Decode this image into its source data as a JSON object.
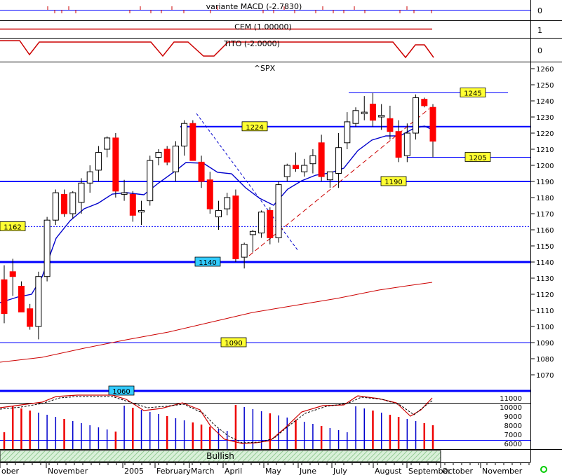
{
  "panels": {
    "macd": {
      "label": "variante MACD (-2.7830)",
      "ticks": [
        "0"
      ]
    },
    "cem": {
      "label": "CEM (1.00000)",
      "ticks": [
        "1",
        "0"
      ]
    },
    "tito": {
      "label": "TITO (-2.0000)",
      "ticks": [
        "0"
      ]
    },
    "volume": {
      "ticks": [
        "11000",
        "10000",
        "9000",
        "8000",
        "7000",
        "6000"
      ]
    }
  },
  "chart_data": {
    "type": "candlestick",
    "title": "^SPX",
    "ylim": [
      1060,
      1260
    ],
    "yticks": [
      1070,
      1080,
      1090,
      1100,
      1110,
      1120,
      1130,
      1140,
      1150,
      1160,
      1170,
      1180,
      1190,
      1200,
      1210,
      1220,
      1230,
      1240,
      1250,
      1260
    ],
    "months": [
      "ober",
      "November",
      "2005",
      "February",
      "March",
      "April",
      "May",
      "June",
      "July",
      "August",
      "September",
      "October",
      "November"
    ],
    "sentiment_label": "Bullish",
    "candles": [
      {
        "o": 1129,
        "h": 1138,
        "l": 1102,
        "c": 1108
      },
      {
        "o": 1134,
        "h": 1142,
        "l": 1119,
        "c": 1131
      },
      {
        "o": 1125,
        "h": 1128,
        "l": 1110,
        "c": 1109
      },
      {
        "o": 1111,
        "h": 1114,
        "l": 1098,
        "c": 1100
      },
      {
        "o": 1100,
        "h": 1134,
        "l": 1092,
        "c": 1131
      },
      {
        "o": 1131,
        "h": 1168,
        "l": 1128,
        "c": 1166
      },
      {
        "o": 1166,
        "h": 1185,
        "l": 1163,
        "c": 1183
      },
      {
        "o": 1182,
        "h": 1185,
        "l": 1168,
        "c": 1170
      },
      {
        "o": 1170,
        "h": 1184,
        "l": 1167,
        "c": 1183
      },
      {
        "o": 1177,
        "h": 1192,
        "l": 1170,
        "c": 1189
      },
      {
        "o": 1189,
        "h": 1200,
        "l": 1183,
        "c": 1196
      },
      {
        "o": 1197,
        "h": 1212,
        "l": 1190,
        "c": 1208
      },
      {
        "o": 1210,
        "h": 1218,
        "l": 1205,
        "c": 1217
      },
      {
        "o": 1217,
        "h": 1220,
        "l": 1180,
        "c": 1184
      },
      {
        "o": 1182,
        "h": 1191,
        "l": 1178,
        "c": 1183
      },
      {
        "o": 1182,
        "h": 1184,
        "l": 1165,
        "c": 1169
      },
      {
        "o": 1171,
        "h": 1178,
        "l": 1163,
        "c": 1172
      },
      {
        "o": 1178,
        "h": 1206,
        "l": 1175,
        "c": 1203
      },
      {
        "o": 1205,
        "h": 1210,
        "l": 1200,
        "c": 1208
      },
      {
        "o": 1210,
        "h": 1212,
        "l": 1200,
        "c": 1202
      },
      {
        "o": 1196,
        "h": 1215,
        "l": 1190,
        "c": 1212
      },
      {
        "o": 1212,
        "h": 1228,
        "l": 1206,
        "c": 1226
      },
      {
        "o": 1226,
        "h": 1228,
        "l": 1205,
        "c": 1203
      },
      {
        "o": 1202,
        "h": 1206,
        "l": 1186,
        "c": 1190
      },
      {
        "o": 1191,
        "h": 1196,
        "l": 1170,
        "c": 1173
      },
      {
        "o": 1168,
        "h": 1178,
        "l": 1160,
        "c": 1172
      },
      {
        "o": 1173,
        "h": 1183,
        "l": 1169,
        "c": 1180
      },
      {
        "o": 1181,
        "h": 1185,
        "l": 1140,
        "c": 1142
      },
      {
        "o": 1143,
        "h": 1152,
        "l": 1136,
        "c": 1151
      },
      {
        "o": 1157,
        "h": 1160,
        "l": 1146,
        "c": 1159
      },
      {
        "o": 1158,
        "h": 1172,
        "l": 1155,
        "c": 1171
      },
      {
        "o": 1172,
        "h": 1174,
        "l": 1151,
        "c": 1155
      },
      {
        "o": 1155,
        "h": 1190,
        "l": 1152,
        "c": 1188
      },
      {
        "o": 1193,
        "h": 1201,
        "l": 1190,
        "c": 1200
      },
      {
        "o": 1200,
        "h": 1208,
        "l": 1196,
        "c": 1198
      },
      {
        "o": 1196,
        "h": 1204,
        "l": 1193,
        "c": 1200
      },
      {
        "o": 1201,
        "h": 1210,
        "l": 1195,
        "c": 1206
      },
      {
        "o": 1214,
        "h": 1219,
        "l": 1190,
        "c": 1193
      },
      {
        "o": 1191,
        "h": 1196,
        "l": 1186,
        "c": 1196
      },
      {
        "o": 1195,
        "h": 1220,
        "l": 1186,
        "c": 1211
      },
      {
        "o": 1214,
        "h": 1233,
        "l": 1210,
        "c": 1227
      },
      {
        "o": 1226,
        "h": 1236,
        "l": 1224,
        "c": 1234
      },
      {
        "o": 1232,
        "h": 1243,
        "l": 1228,
        "c": 1233
      },
      {
        "o": 1238,
        "h": 1245,
        "l": 1224,
        "c": 1228
      },
      {
        "o": 1230,
        "h": 1238,
        "l": 1222,
        "c": 1231
      },
      {
        "o": 1229,
        "h": 1237,
        "l": 1216,
        "c": 1221
      },
      {
        "o": 1221,
        "h": 1228,
        "l": 1202,
        "c": 1205
      },
      {
        "o": 1206,
        "h": 1226,
        "l": 1202,
        "c": 1220
      },
      {
        "o": 1220,
        "h": 1244,
        "l": 1216,
        "c": 1242
      },
      {
        "o": 1241,
        "h": 1242,
        "l": 1236,
        "c": 1237
      },
      {
        "o": 1236,
        "h": 1238,
        "l": 1205,
        "c": 1215
      }
    ],
    "levels": [
      {
        "value": 1245,
        "label": "1245",
        "weight": 1
      },
      {
        "value": 1224,
        "label": "1224",
        "weight": 2
      },
      {
        "value": 1205,
        "label": "1205",
        "weight": 1
      },
      {
        "value": 1190,
        "label": "1190",
        "weight": 2
      },
      {
        "value": 1162,
        "label": "1162",
        "weight": 1
      },
      {
        "value": 1140,
        "label": "1140",
        "weight": 3
      },
      {
        "value": 1090,
        "label": "1090",
        "weight": 1
      },
      {
        "value": 1060,
        "label": "1060",
        "weight": 3
      }
    ]
  }
}
